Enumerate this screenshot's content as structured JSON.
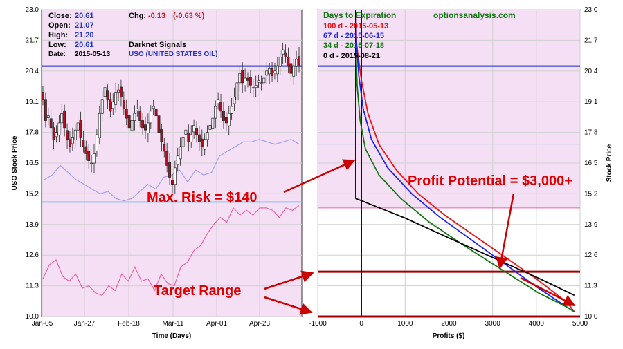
{
  "info": {
    "close_label": "Close:",
    "close": "20.61",
    "open_label": "Open:",
    "open": "21.07",
    "high_label": "High:",
    "high": "21.20",
    "low_label": "Low:",
    "low": "20.61",
    "date_label": "Date:",
    "date": "2015-05-13",
    "chg_label": "Chg:",
    "chg": "-0.13",
    "chg_pct": "(-0.63 %)",
    "signal_label": "Darknet Signals",
    "symbol": "USO (UNITED STATES OIL)"
  },
  "annotations": {
    "max_risk": "Max. Risk = $140",
    "profit_potential": "Profit Potential = $3,000+",
    "target_range": "Target Range"
  },
  "colors": {
    "panel_bg": "#f5dff5",
    "price_line": "#1a2bc9",
    "band_upper": "#9f9ff0",
    "band_lower": "#f060a8",
    "support": "#8ec5ea",
    "target": "#a00000",
    "annot": "#dd0000",
    "candle_up": "#ffffff",
    "candle_down": "#b01020",
    "d100": "#ee1111",
    "d67": "#1a22ee",
    "d34": "#117711",
    "d0": "#000000",
    "brand": "#117711"
  },
  "chart_data": [
    {
      "type": "candlestick",
      "xlabel": "Time (Days)",
      "ylabel": "USO Stock Price",
      "x_ticks": [
        "Jan-05",
        "Jan-27",
        "Feb-18",
        "Mar-11",
        "Apr-01",
        "Apr-23"
      ],
      "y_ticks": [
        "10.0",
        "11.3",
        "12.6",
        "13.9",
        "15.2",
        "16.5",
        "17.8",
        "19.1",
        "20.4",
        "21.7",
        "23.0"
      ],
      "ylim": [
        10.0,
        23.0
      ],
      "closes": [
        19.2,
        18.3,
        18.5,
        18.0,
        17.5,
        17.8,
        18.2,
        18.6,
        18.0,
        17.5,
        17.2,
        17.6,
        17.9,
        18.2,
        17.6,
        17.2,
        16.9,
        16.6,
        16.5,
        16.9,
        17.7,
        18.6,
        19.2,
        19.7,
        19.2,
        18.7,
        19.1,
        19.5,
        19.6,
        19.3,
        18.8,
        18.4,
        18.0,
        18.3,
        18.6,
        18.8,
        18.3,
        18.0,
        17.9,
        18.2,
        18.7,
        18.9,
        18.5,
        17.8,
        17.4,
        17.0,
        16.4,
        15.9,
        15.6,
        16.3,
        16.8,
        17.2,
        17.6,
        17.9,
        17.4,
        17.7,
        18.1,
        17.7,
        17.4,
        17.2,
        17.5,
        17.8,
        18.1,
        18.4,
        18.9,
        19.2,
        18.7,
        18.3,
        18.2,
        18.6,
        18.9,
        19.3,
        19.9,
        20.3,
        19.9,
        20.1,
        20.0,
        19.8,
        19.7,
        19.8,
        20.0,
        19.9,
        20.1,
        20.4,
        20.5,
        20.2,
        20.4,
        20.6,
        21.0,
        21.3,
        21.0,
        20.6,
        20.3,
        20.6,
        20.9,
        20.6
      ],
      "current_price": 20.61,
      "upper_band": [
        15.8,
        16.0,
        16.4,
        16.1,
        15.8,
        15.6,
        15.4,
        15.2,
        15.3,
        15.0,
        14.9,
        15.0,
        15.3,
        15.6,
        15.4,
        15.9,
        16.0,
        16.2,
        15.7,
        16.2,
        16.0,
        16.1,
        16.8,
        17.0,
        17.2,
        17.4,
        17.4,
        17.5,
        17.4,
        17.3,
        17.4,
        17.5,
        17.3
      ],
      "lower_band": [
        11.6,
        12.2,
        12.4,
        11.7,
        11.5,
        11.8,
        11.2,
        11.3,
        11.0,
        10.9,
        11.3,
        11.1,
        11.8,
        11.5,
        12.1,
        11.5,
        11.6,
        11.1,
        11.8,
        11.4,
        11.3,
        12.1,
        12.3,
        12.8,
        13.0,
        13.5,
        13.9,
        14.2,
        14.0,
        14.6,
        14.3,
        14.5,
        14.3,
        14.6,
        14.6,
        14.5,
        14.2,
        14.6,
        14.5,
        14.7
      ],
      "support_level": 14.85
    },
    {
      "type": "line",
      "title": "optionsanalysis.com",
      "legend_title": "Days to Expiration",
      "xlabel": "Profits ($)",
      "ylabel": "Stock Price",
      "xlim": [
        -1000,
        5000
      ],
      "ylim": [
        10.0,
        23.0
      ],
      "x_ticks": [
        "-1000",
        "0",
        "1000",
        "2000",
        "3000",
        "4000",
        "5000"
      ],
      "y_ticks": [
        "10.0",
        "11.3",
        "12.6",
        "13.9",
        "15.2",
        "16.5",
        "17.8",
        "19.1",
        "20.4",
        "21.7",
        "23.0"
      ],
      "target_price": 11.9,
      "series": [
        {
          "name": "100 d - 2015-05-13",
          "x": [
            -130,
            -110,
            0,
            150,
            400,
            800,
            1300,
            1900,
            2600,
            3300,
            4000,
            4700,
            4870
          ],
          "y": [
            23.0,
            21.5,
            20.0,
            18.6,
            17.3,
            16.2,
            15.2,
            14.3,
            13.4,
            12.5,
            11.6,
            10.6,
            10.2
          ]
        },
        {
          "name": "67 d - 2015-06-15",
          "x": [
            -130,
            -120,
            -60,
            40,
            230,
            600,
            1150,
            1800,
            2550,
            3300,
            4050,
            4700,
            4870
          ],
          "y": [
            23.0,
            21.8,
            20.2,
            18.8,
            17.5,
            16.3,
            15.2,
            14.2,
            13.2,
            12.2,
            11.2,
            10.4,
            10.2
          ]
        },
        {
          "name": "34 d - 2015-07-18",
          "x": [
            -130,
            -130,
            -100,
            -30,
            90,
            400,
            900,
            1550,
            2350,
            3200,
            4050,
            4700,
            4870
          ],
          "y": [
            23.0,
            21.5,
            19.8,
            18.3,
            17.1,
            16.0,
            15.0,
            14.0,
            13.0,
            12.0,
            11.0,
            10.4,
            10.2
          ]
        },
        {
          "name": "0 d - 2015-08-21",
          "x": [
            -130,
            -130,
            1000,
            2000,
            3000,
            4000,
            4870
          ],
          "y": [
            23.0,
            15.0,
            14.17,
            13.33,
            12.5,
            11.67,
            10.9
          ]
        }
      ]
    }
  ]
}
